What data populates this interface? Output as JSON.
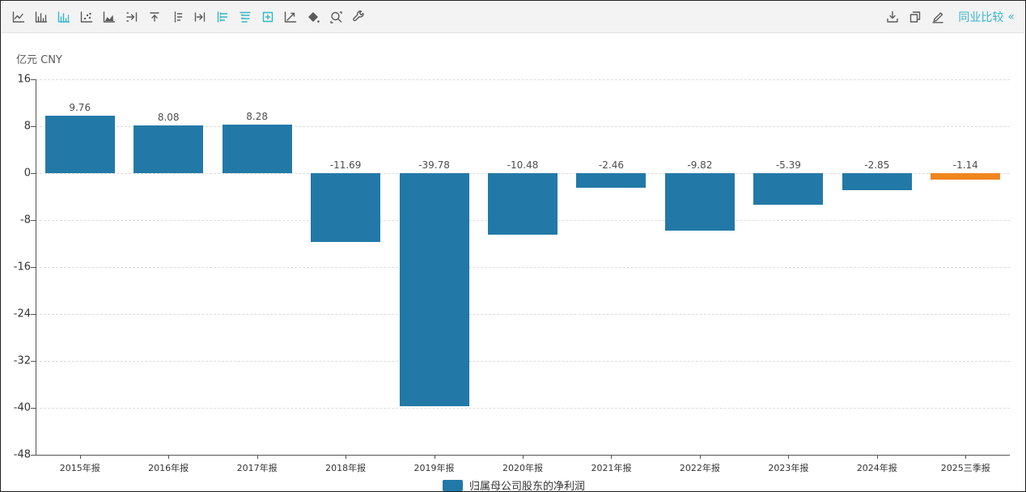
{
  "toolbar": {
    "left_icons": [
      {
        "name": "line-chart-icon",
        "active": false
      },
      {
        "name": "bar-chart-icon",
        "active": false
      },
      {
        "name": "bar-dashed-chart-icon",
        "active": true
      },
      {
        "name": "scatter-chart-icon",
        "active": false
      },
      {
        "name": "area-chart-icon",
        "active": false
      },
      {
        "name": "shift-right-icon",
        "active": false
      },
      {
        "name": "shift-up-icon",
        "active": false
      },
      {
        "name": "dashed-axis-icon",
        "active": false
      },
      {
        "name": "shift-right-alt-icon",
        "active": false
      },
      {
        "name": "legend-left-icon",
        "active": true
      },
      {
        "name": "legend-top-icon",
        "active": true
      },
      {
        "name": "add-panel-icon",
        "active": true
      },
      {
        "name": "trendline-icon",
        "active": false
      },
      {
        "name": "fill-color-icon",
        "active": false
      },
      {
        "name": "zoom-area-icon",
        "active": false
      },
      {
        "name": "settings-wrench-icon",
        "active": false
      }
    ],
    "right_icons": [
      {
        "name": "download-icon"
      },
      {
        "name": "copy-icon"
      },
      {
        "name": "edit-icon"
      }
    ],
    "compare_link_label": "同业比较",
    "collapse_glyph": "«"
  },
  "chart_data": {
    "type": "bar",
    "unit_label": "亿元 CNY",
    "categories": [
      "2015年报",
      "2016年报",
      "2017年报",
      "2018年报",
      "2019年报",
      "2020年报",
      "2021年报",
      "2022年报",
      "2023年报",
      "2024年报",
      "2025三季报"
    ],
    "series": [
      {
        "name": "归属母公司股东的净利润",
        "values": [
          9.76,
          8.08,
          8.28,
          -11.69,
          -39.78,
          -10.48,
          -2.46,
          -9.82,
          -5.39,
          -2.85,
          -1.14
        ]
      }
    ],
    "highlight_index": 10,
    "colors": {
      "bar": "#2279a7",
      "highlight": "#f0861e",
      "accent": "#35b6c9"
    },
    "yticks": [
      16,
      8,
      0,
      -8,
      -16,
      -24,
      -32,
      -40,
      -48
    ],
    "ylim": [
      -48,
      16
    ],
    "grid": "dashed-horizontal",
    "legend": [
      "归属母公司股东的净利润"
    ],
    "legend_position": "bottom-center"
  }
}
